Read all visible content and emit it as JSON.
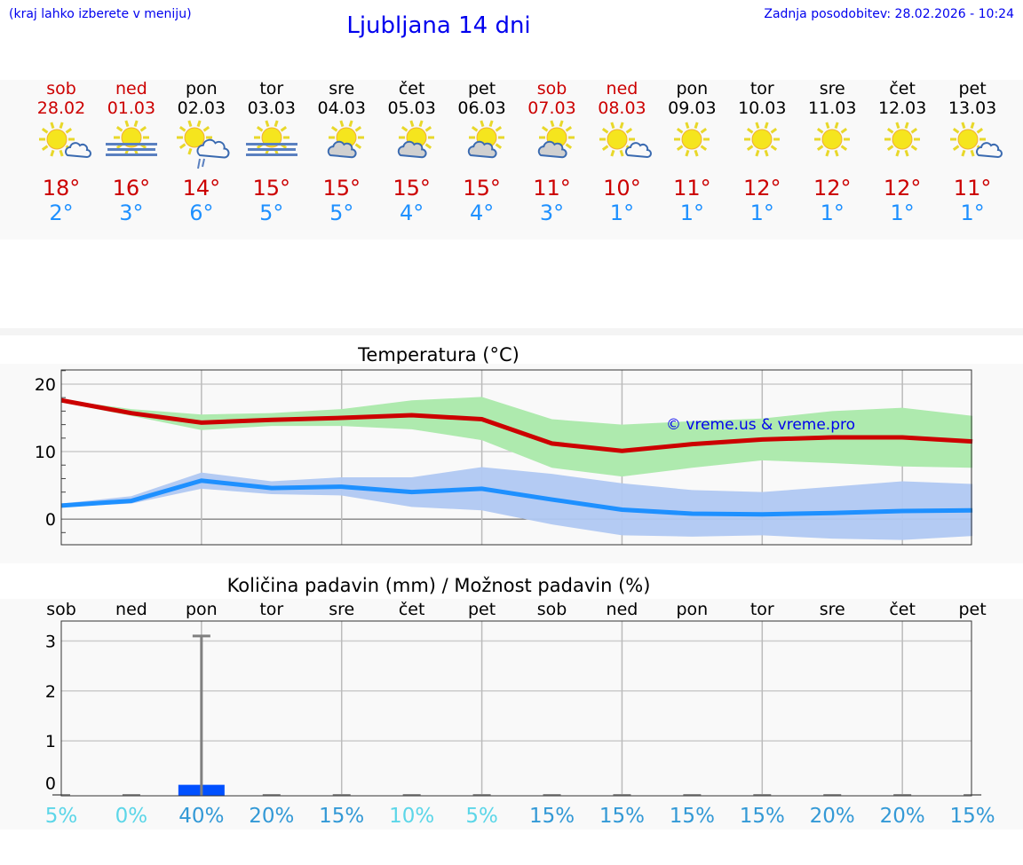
{
  "header": {
    "left_note": "(kraj lahko izberete v meniju)",
    "title": "Ljubljana 14 dni",
    "updated": "Zadnja posodobitev: 28.02.2026 - 10:24"
  },
  "days": [
    {
      "day": "sob",
      "date": "28.02",
      "weekend": true,
      "icon": "sun-small-cloud",
      "max": "18°",
      "min": "2°"
    },
    {
      "day": "ned",
      "date": "01.03",
      "weekend": true,
      "icon": "sun-fog",
      "max": "16°",
      "min": "3°"
    },
    {
      "day": "pon",
      "date": "02.03",
      "weekend": false,
      "icon": "sun-cloud-rain",
      "max": "14°",
      "min": "6°"
    },
    {
      "day": "tor",
      "date": "03.03",
      "weekend": false,
      "icon": "sun-fog",
      "max": "15°",
      "min": "5°"
    },
    {
      "day": "sre",
      "date": "04.03",
      "weekend": false,
      "icon": "cloud-sun",
      "max": "15°",
      "min": "5°"
    },
    {
      "day": "čet",
      "date": "05.03",
      "weekend": false,
      "icon": "cloud-sun",
      "max": "15°",
      "min": "4°"
    },
    {
      "day": "pet",
      "date": "06.03",
      "weekend": false,
      "icon": "cloud-sun",
      "max": "15°",
      "min": "4°"
    },
    {
      "day": "sob",
      "date": "07.03",
      "weekend": true,
      "icon": "cloud-sun",
      "max": "11°",
      "min": "3°"
    },
    {
      "day": "ned",
      "date": "08.03",
      "weekend": true,
      "icon": "sun-small-cloud",
      "max": "10°",
      "min": "1°"
    },
    {
      "day": "pon",
      "date": "09.03",
      "weekend": false,
      "icon": "sun",
      "max": "11°",
      "min": "1°"
    },
    {
      "day": "tor",
      "date": "10.03",
      "weekend": false,
      "icon": "sun",
      "max": "12°",
      "min": "1°"
    },
    {
      "day": "sre",
      "date": "11.03",
      "weekend": false,
      "icon": "sun",
      "max": "12°",
      "min": "1°"
    },
    {
      "day": "čet",
      "date": "12.03",
      "weekend": false,
      "icon": "sun",
      "max": "12°",
      "min": "1°"
    },
    {
      "day": "pet",
      "date": "13.03",
      "weekend": false,
      "icon": "sun-small-cloud",
      "max": "11°",
      "min": "1°"
    }
  ],
  "colors": {
    "max": "#cc0000",
    "min": "#1e90ff",
    "max_band": "#aeeaae",
    "min_band": "#b0c8f2",
    "precip_bar": "#0050ff",
    "pct_low": "#5cd6e8",
    "pct": "#3399d6"
  },
  "chart_data": [
    {
      "type": "line",
      "title": "Temperatura (°C)",
      "ylim": [
        -3.8,
        22.1
      ],
      "yticks": [
        0,
        10,
        20
      ],
      "grid": true,
      "watermark": "© vreme.us & vreme.pro",
      "x": [
        "28.02",
        "01.03",
        "02.03",
        "03.03",
        "04.03",
        "05.03",
        "06.03",
        "07.03",
        "08.03",
        "09.03",
        "10.03",
        "11.03",
        "12.03",
        "13.03"
      ],
      "series": [
        {
          "role": "max",
          "values": [
            17.6,
            15.7,
            14.3,
            14.7,
            15.0,
            15.4,
            14.8,
            11.2,
            10.1,
            11.1,
            11.8,
            12.1,
            12.1,
            11.5
          ],
          "band_upper": [
            17.7,
            16.3,
            15.5,
            15.7,
            16.3,
            17.6,
            18.1,
            14.8,
            14.0,
            14.5,
            14.9,
            16.0,
            16.5,
            15.3
          ],
          "band_lower": [
            17.3,
            15.3,
            13.2,
            13.8,
            13.8,
            13.3,
            11.7,
            7.6,
            6.3,
            7.6,
            8.7,
            8.3,
            7.8,
            7.6
          ]
        },
        {
          "role": "min",
          "values": [
            2.0,
            2.7,
            5.7,
            4.6,
            4.8,
            4.0,
            4.5,
            2.9,
            1.4,
            0.8,
            0.7,
            0.9,
            1.2,
            1.3
          ],
          "band_upper": [
            2.3,
            3.4,
            6.9,
            5.6,
            6.2,
            6.2,
            7.7,
            6.7,
            5.3,
            4.3,
            4.0,
            4.8,
            5.6,
            5.2
          ],
          "band_lower": [
            1.8,
            2.3,
            4.5,
            3.7,
            3.5,
            1.8,
            1.3,
            -0.8,
            -2.4,
            -2.6,
            -2.4,
            -2.9,
            -3.1,
            -2.5
          ]
        }
      ]
    },
    {
      "type": "bar",
      "title": "Količina padavin (mm) / Možnost padavin (%)",
      "ylim": [
        -0.1,
        3.4
      ],
      "yticks": [
        0,
        1,
        2,
        3
      ],
      "grid": true,
      "categories": [
        "sob",
        "ned",
        "pon",
        "tor",
        "sre",
        "čet",
        "pet",
        "sob",
        "ned",
        "pon",
        "tor",
        "sre",
        "čet",
        "pet"
      ],
      "values": [
        0,
        0,
        0.12,
        0,
        0,
        0,
        0,
        0,
        0,
        0,
        0,
        0,
        0,
        0
      ],
      "error_upper": [
        0,
        0,
        3.1,
        0,
        0,
        0,
        0,
        0,
        0,
        0,
        0,
        0,
        0,
        0
      ],
      "probability": [
        "5%",
        "0%",
        "40%",
        "20%",
        "15%",
        "10%",
        "5%",
        "15%",
        "15%",
        "15%",
        "15%",
        "20%",
        "20%",
        "15%"
      ]
    }
  ]
}
